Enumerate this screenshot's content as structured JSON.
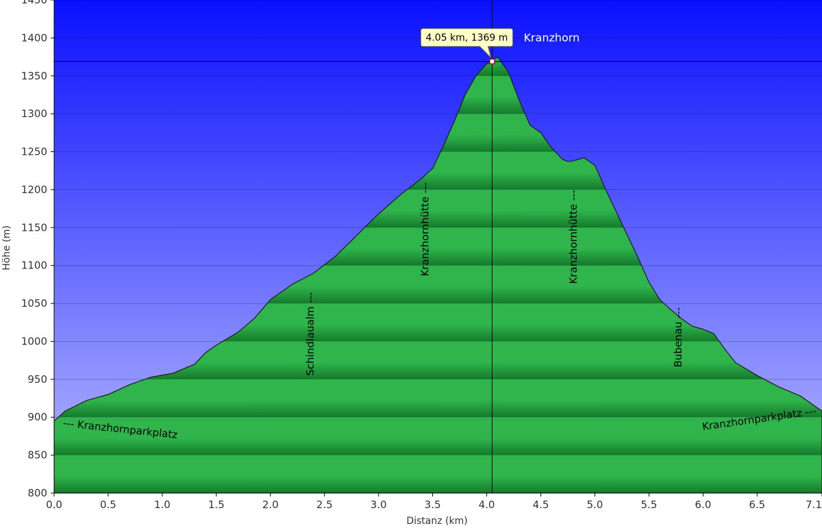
{
  "chart_data": {
    "type": "area",
    "xlabel": "Distanz  (km)",
    "ylabel": "Höhe (m)",
    "xlim": [
      0,
      7.1
    ],
    "ylim": [
      800,
      1450
    ],
    "x_ticks": [
      0,
      0.5,
      1.0,
      1.5,
      2.0,
      2.5,
      3.0,
      3.5,
      4.0,
      4.5,
      5.0,
      5.5,
      6.0,
      6.5,
      7.1
    ],
    "x_tick_labels": [
      "0.0",
      "0.5",
      "1.0",
      "1.5",
      "2.0",
      "2.5",
      "3.0",
      "3.5",
      "4.0",
      "4.5",
      "5.0",
      "5.5",
      "6.0",
      "6.5",
      "7.1"
    ],
    "y_ticks": [
      800,
      850,
      900,
      950,
      1000,
      1050,
      1100,
      1150,
      1200,
      1250,
      1300,
      1350,
      1400,
      1450
    ],
    "grid": true,
    "colors": {
      "sky_top": "#0a10ff",
      "sky_bottom": "#b9bcff",
      "fill_light": "#2fb54c",
      "fill_dark": "#157a2c",
      "outline": "#1a1a1a"
    },
    "series": [
      {
        "x": [
          0.0,
          0.1,
          0.3,
          0.5,
          0.7,
          0.9,
          1.1,
          1.3,
          1.4,
          1.5,
          1.7,
          1.85,
          2.0,
          2.2,
          2.4,
          2.6,
          2.8,
          3.0,
          3.2,
          3.4,
          3.5,
          3.6,
          3.7,
          3.8,
          3.9,
          4.0,
          4.05,
          4.1,
          4.2,
          4.3,
          4.4,
          4.5,
          4.6,
          4.7,
          4.75,
          4.8,
          4.9,
          5.0,
          5.1,
          5.2,
          5.3,
          5.4,
          5.5,
          5.6,
          5.7,
          5.8,
          5.9,
          6.0,
          6.1,
          6.2,
          6.3,
          6.5,
          6.7,
          6.9,
          7.0,
          7.1
        ],
        "y": [
          895,
          908,
          922,
          930,
          943,
          953,
          958,
          970,
          985,
          995,
          1012,
          1030,
          1055,
          1075,
          1090,
          1112,
          1140,
          1168,
          1193,
          1215,
          1228,
          1258,
          1290,
          1325,
          1350,
          1366,
          1369,
          1375,
          1355,
          1318,
          1285,
          1275,
          1255,
          1240,
          1237,
          1238,
          1242,
          1232,
          1200,
          1170,
          1140,
          1110,
          1078,
          1055,
          1042,
          1030,
          1020,
          1016,
          1010,
          990,
          972,
          955,
          940,
          928,
          918,
          908
        ]
      }
    ],
    "waypoints": [
      {
        "x": 0.08,
        "y": 888,
        "label": "--- Kranzhornparkplatz"
      },
      {
        "x": 2.37,
        "y": 1065,
        "label": "Schindlaualm ---"
      },
      {
        "x": 3.43,
        "y": 1210,
        "label": "Kranzhornhütte ---"
      },
      {
        "x": 4.8,
        "y": 1200,
        "label": "Kranzhornhütte ---"
      },
      {
        "x": 5.77,
        "y": 1045,
        "label": "Bubenau ---"
      },
      {
        "x": 7.05,
        "y": 904,
        "label": "Kranzhornparkplatz ---"
      }
    ],
    "cursor": {
      "x": 4.05,
      "y": 1369,
      "tooltip": "4.05 km, 1369 m",
      "name": "Kranzhorn"
    }
  }
}
